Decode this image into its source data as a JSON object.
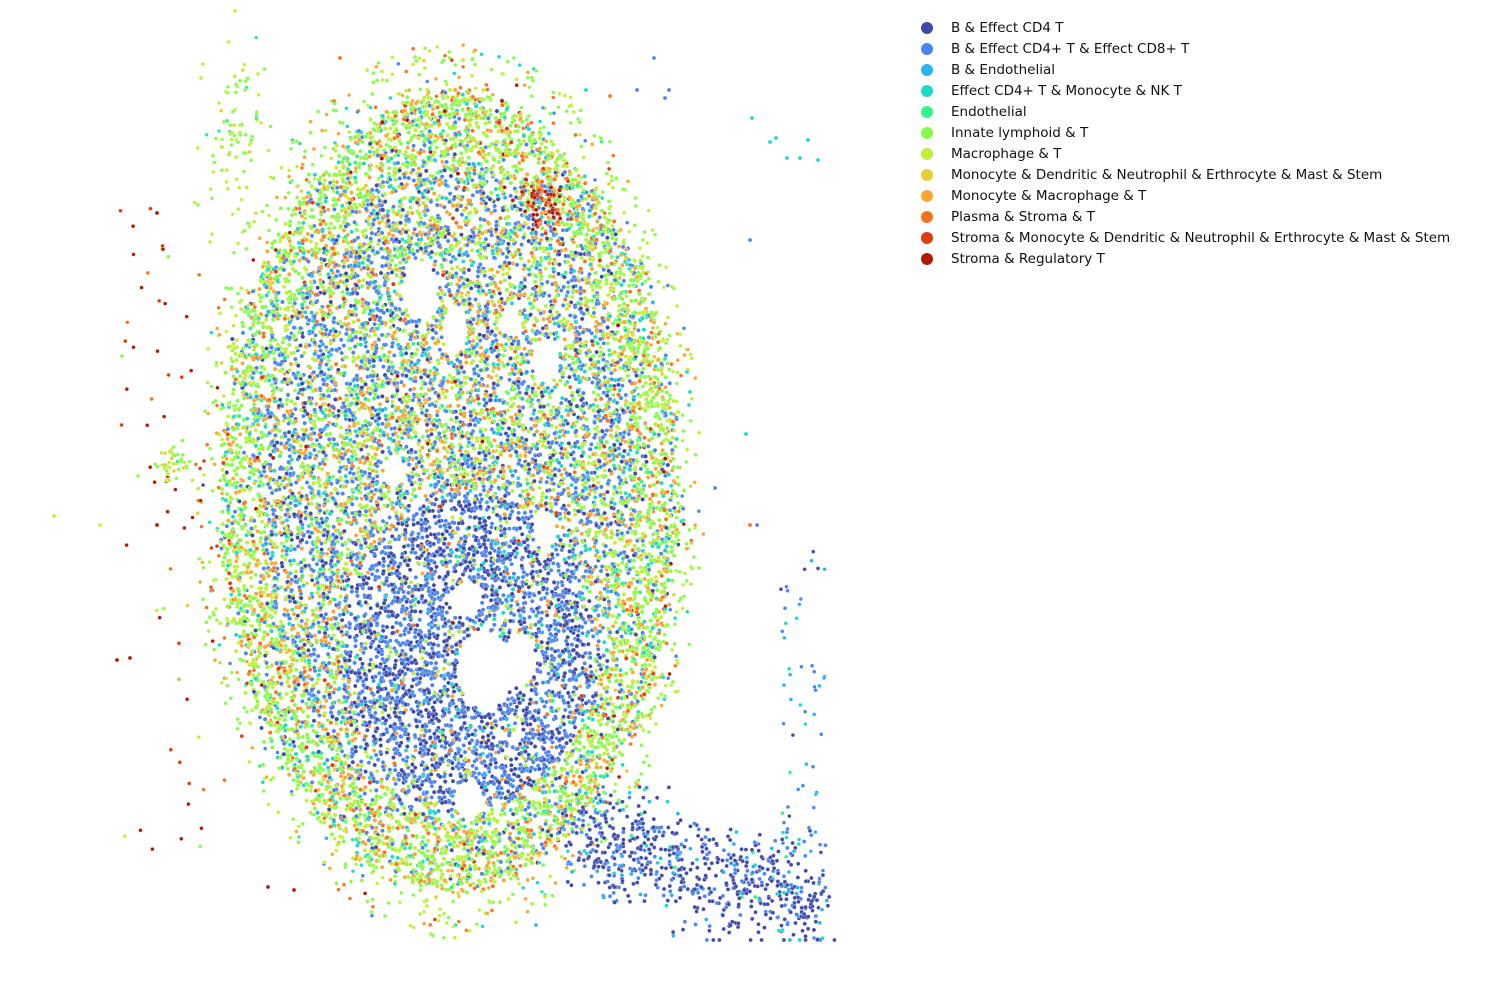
{
  "chart_data": {
    "type": "scatter",
    "title": "",
    "xlabel": "",
    "ylabel": "",
    "axes_visible": false,
    "grid": false,
    "legend_position": "upper-right (outside plot)",
    "x_range": [
      0,
      1
    ],
    "y_range": [
      0,
      1
    ],
    "series": [
      {
        "name": "B & Effect CD4 T",
        "color": "#3f4aa8"
      },
      {
        "name": "B & Effect CD4+ T & Effect CD8+ T",
        "color": "#4a85ef"
      },
      {
        "name": "B & Endothelial",
        "color": "#2cb3ee"
      },
      {
        "name": "Effect CD4+ T & Monocyte & NK T",
        "color": "#1ed9c9"
      },
      {
        "name": "Endothelial",
        "color": "#36f08e"
      },
      {
        "name": "Innate lymphoid & T",
        "color": "#86fb4a"
      },
      {
        "name": "Macrophage & T",
        "color": "#bef03a"
      },
      {
        "name": "Monocyte & Dendritic & Neutrophil & Erthrocyte & Mast & Stem",
        "color": "#eacc38"
      },
      {
        "name": "Monocyte & Macrophage & T",
        "color": "#fba534"
      },
      {
        "name": "Plasma & Stroma & T",
        "color": "#f8721d"
      },
      {
        "name": "Stroma & Monocyte & Dendritic & Neutrophil & Erthrocyte & Mast & Stem",
        "color": "#dc3d0e"
      },
      {
        "name": "Stroma & Regulatory T",
        "color": "#b01a05"
      }
    ]
  }
}
